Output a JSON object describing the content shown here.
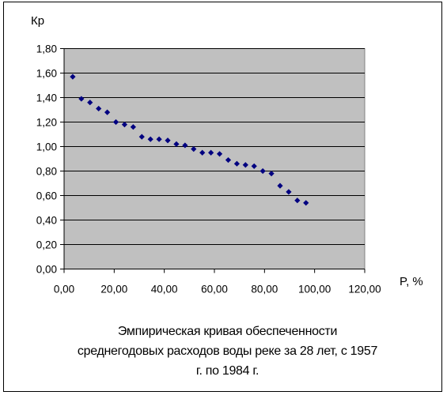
{
  "chart_data": {
    "type": "scatter",
    "title_lines": [
      "Эмпирическая кривая обеспеченности",
      "среднегодовых расходов воды реке за 28 лет, с 1957",
      "г. по 1984 г."
    ],
    "xlabel": "P, %",
    "ylabel": "Кр",
    "xlim": [
      0,
      120
    ],
    "ylim": [
      0,
      1.8
    ],
    "x_ticks": [
      "0,00",
      "20,00",
      "40,00",
      "60,00",
      "80,00",
      "100,00",
      "120,00"
    ],
    "y_ticks": [
      "0,00",
      "0,20",
      "0,40",
      "0,60",
      "0,80",
      "1,00",
      "1,20",
      "1,40",
      "1,60",
      "1,80"
    ],
    "grid": "horizontal",
    "legend": "none",
    "plot_background": "#c0c0c0",
    "marker_color": "#000080",
    "marker_shape": "diamond",
    "series": [
      {
        "x": [
          3.45,
          6.9,
          10.34,
          13.79,
          17.24,
          20.69,
          24.14,
          27.59,
          31.03,
          34.48,
          37.93,
          41.38,
          44.83,
          48.28,
          51.72,
          55.17,
          58.62,
          62.07,
          65.52,
          68.97,
          72.41,
          75.86,
          79.31,
          82.76,
          86.21,
          89.66,
          93.1,
          96.55
        ],
        "y": [
          1.57,
          1.39,
          1.36,
          1.31,
          1.28,
          1.2,
          1.18,
          1.16,
          1.08,
          1.06,
          1.06,
          1.05,
          1.02,
          1.01,
          0.98,
          0.95,
          0.95,
          0.94,
          0.89,
          0.86,
          0.85,
          0.84,
          0.8,
          0.78,
          0.68,
          0.63,
          0.56,
          0.54
        ]
      }
    ]
  }
}
